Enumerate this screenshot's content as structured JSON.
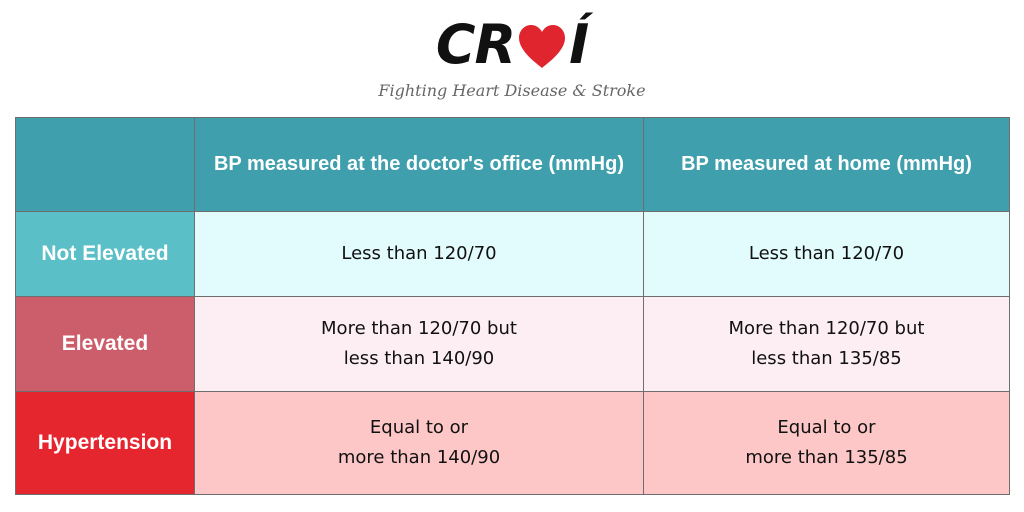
{
  "logo": {
    "letters_left": "CR",
    "letters_right": "Í",
    "tagline": "Fighting Heart Disease & Stroke",
    "heart_color": "#e0252e"
  },
  "table": {
    "headers": [
      "",
      "BP measured at the doctor's office (mmHg)",
      "BP measured at home (mmHg)"
    ],
    "header_color": "#3f9fac",
    "rows": [
      {
        "label": "Not Elevated",
        "label_color": "#5bbfc7",
        "cell_color": "#e2fbfc",
        "office": [
          "Less than 120/70"
        ],
        "home": [
          "Less than 120/70"
        ]
      },
      {
        "label": "Elevated",
        "label_color": "#cc5d6b",
        "cell_color": "#fdeef3",
        "office": [
          "More than 120/70 but",
          "less than 140/90"
        ],
        "home": [
          "More than 120/70 but",
          "less than 135/85"
        ]
      },
      {
        "label": "Hypertension",
        "label_color": "#e6262e",
        "cell_color": "#fdc7c8",
        "office": [
          "Equal to or",
          "more than 140/90"
        ],
        "home": [
          "Equal to or",
          "more than 135/85"
        ]
      }
    ]
  }
}
